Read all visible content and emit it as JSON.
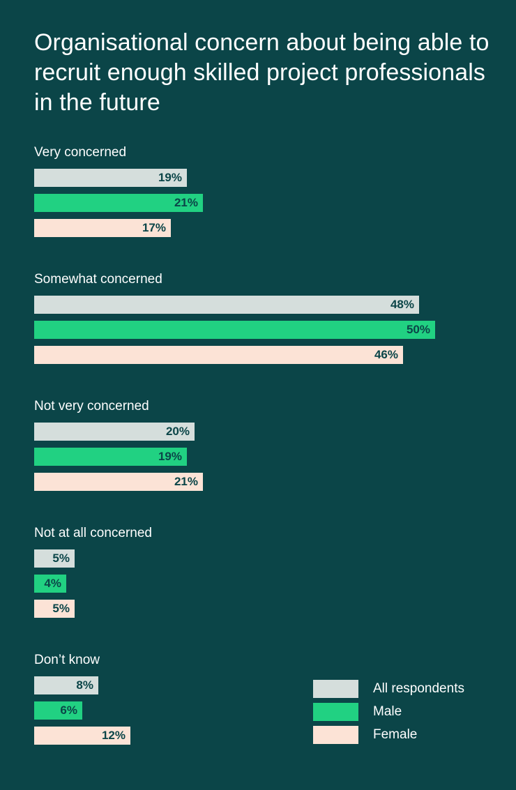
{
  "chart_data": {
    "type": "bar",
    "orientation": "horizontal",
    "title": "Organisational concern about being able to recruit enough skilled project professionals in the future",
    "categories": [
      "Very concerned",
      "Somewhat concerned",
      "Not very concerned",
      "Not at all concerned",
      "Don’t know"
    ],
    "series": [
      {
        "name": "All respondents",
        "color": "#d5dedc",
        "values": [
          19,
          48,
          20,
          5,
          8
        ]
      },
      {
        "name": "Male",
        "color": "#21d182",
        "values": [
          21,
          50,
          19,
          4,
          6
        ]
      },
      {
        "name": "Female",
        "color": "#fce3d6",
        "values": [
          17,
          46,
          21,
          5,
          12
        ]
      }
    ],
    "value_suffix": "%",
    "xlim": [
      0,
      50
    ],
    "grid": false,
    "legend_position": "bottom-right"
  }
}
